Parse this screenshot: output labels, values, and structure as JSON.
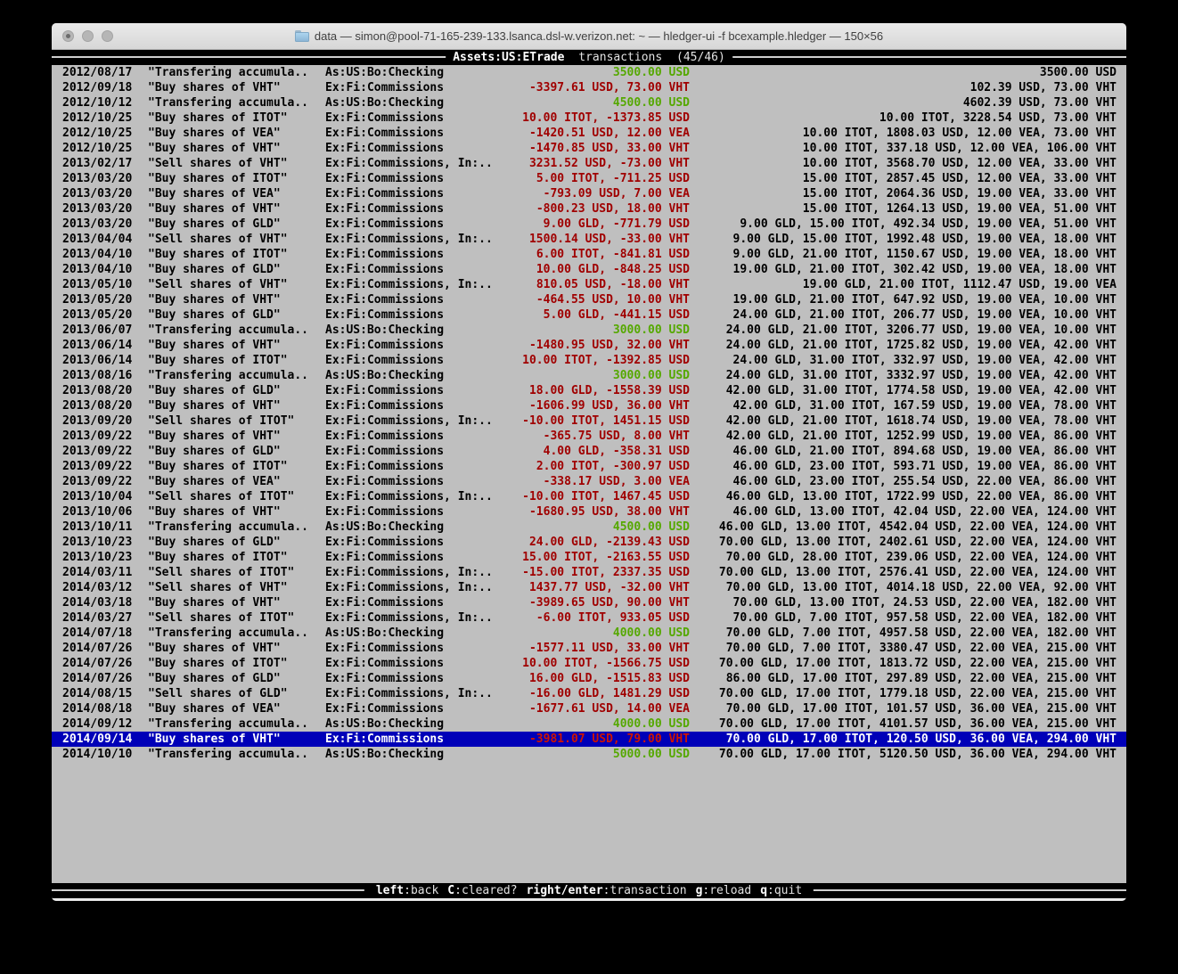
{
  "window": {
    "title": "data — simon@pool-71-165-239-133.lsanca.dsl-w.verizon.net: ~ — hledger-ui -f bcexample.hledger — 150×56"
  },
  "register": {
    "account": "Assets:US:ETrade",
    "mode": "transactions",
    "count": "(45/46)"
  },
  "footer": {
    "separator": ":",
    "hints": [
      {
        "key": "left",
        "label": "back"
      },
      {
        "key": "C",
        "label": "cleared?"
      },
      {
        "key": "right/enter",
        "label": "transaction"
      },
      {
        "key": "g",
        "label": "reload"
      },
      {
        "key": "q",
        "label": "quit"
      }
    ]
  },
  "colors": {
    "terminal_background": "#bfbfbf",
    "bar_background": "#000000",
    "bar_line": "#cfcfcf",
    "amount_negative": "#a00000",
    "amount_positive": "#55a800",
    "selection_background": "#0000b8",
    "selection_text": "#ffffff",
    "selection_negative": "#cd1400"
  },
  "selected_index": 44,
  "transactions": [
    {
      "date": "2012/08/17",
      "description": "\"Transfering accumula..",
      "accounts": "As:US:Bo:Checking",
      "change": "3500.00 USD",
      "change_sign": "pos",
      "balance": "3500.00 USD"
    },
    {
      "date": "2012/09/18",
      "description": "\"Buy shares of VHT\"",
      "accounts": "Ex:Fi:Commissions",
      "change": "-3397.61 USD, 73.00 VHT",
      "change_sign": "neg",
      "balance": "102.39 USD, 73.00 VHT"
    },
    {
      "date": "2012/10/12",
      "description": "\"Transfering accumula..",
      "accounts": "As:US:Bo:Checking",
      "change": "4500.00 USD",
      "change_sign": "pos",
      "balance": "4602.39 USD, 73.00 VHT"
    },
    {
      "date": "2012/10/25",
      "description": "\"Buy shares of ITOT\"",
      "accounts": "Ex:Fi:Commissions",
      "change": "10.00 ITOT, -1373.85 USD",
      "change_sign": "neg",
      "balance": "10.00 ITOT, 3228.54 USD, 73.00 VHT"
    },
    {
      "date": "2012/10/25",
      "description": "\"Buy shares of VEA\"",
      "accounts": "Ex:Fi:Commissions",
      "change": "-1420.51 USD, 12.00 VEA",
      "change_sign": "neg",
      "balance": "10.00 ITOT, 1808.03 USD, 12.00 VEA, 73.00 VHT"
    },
    {
      "date": "2012/10/25",
      "description": "\"Buy shares of VHT\"",
      "accounts": "Ex:Fi:Commissions",
      "change": "-1470.85 USD, 33.00 VHT",
      "change_sign": "neg",
      "balance": "10.00 ITOT, 337.18 USD, 12.00 VEA, 106.00 VHT"
    },
    {
      "date": "2013/02/17",
      "description": "\"Sell shares of VHT\"",
      "accounts": "Ex:Fi:Commissions, In:..",
      "change": "3231.52 USD, -73.00 VHT",
      "change_sign": "neg",
      "balance": "10.00 ITOT, 3568.70 USD, 12.00 VEA, 33.00 VHT"
    },
    {
      "date": "2013/03/20",
      "description": "\"Buy shares of ITOT\"",
      "accounts": "Ex:Fi:Commissions",
      "change": "5.00 ITOT, -711.25 USD",
      "change_sign": "neg",
      "balance": "15.00 ITOT, 2857.45 USD, 12.00 VEA, 33.00 VHT"
    },
    {
      "date": "2013/03/20",
      "description": "\"Buy shares of VEA\"",
      "accounts": "Ex:Fi:Commissions",
      "change": "-793.09 USD, 7.00 VEA",
      "change_sign": "neg",
      "balance": "15.00 ITOT, 2064.36 USD, 19.00 VEA, 33.00 VHT"
    },
    {
      "date": "2013/03/20",
      "description": "\"Buy shares of VHT\"",
      "accounts": "Ex:Fi:Commissions",
      "change": "-800.23 USD, 18.00 VHT",
      "change_sign": "neg",
      "balance": "15.00 ITOT, 1264.13 USD, 19.00 VEA, 51.00 VHT"
    },
    {
      "date": "2013/03/20",
      "description": "\"Buy shares of GLD\"",
      "accounts": "Ex:Fi:Commissions",
      "change": "9.00 GLD, -771.79 USD",
      "change_sign": "neg",
      "balance": "9.00 GLD, 15.00 ITOT, 492.34 USD, 19.00 VEA, 51.00 VHT"
    },
    {
      "date": "2013/04/04",
      "description": "\"Sell shares of VHT\"",
      "accounts": "Ex:Fi:Commissions, In:..",
      "change": "1500.14 USD, -33.00 VHT",
      "change_sign": "neg",
      "balance": "9.00 GLD, 15.00 ITOT, 1992.48 USD, 19.00 VEA, 18.00 VHT"
    },
    {
      "date": "2013/04/10",
      "description": "\"Buy shares of ITOT\"",
      "accounts": "Ex:Fi:Commissions",
      "change": "6.00 ITOT, -841.81 USD",
      "change_sign": "neg",
      "balance": "9.00 GLD, 21.00 ITOT, 1150.67 USD, 19.00 VEA, 18.00 VHT"
    },
    {
      "date": "2013/04/10",
      "description": "\"Buy shares of GLD\"",
      "accounts": "Ex:Fi:Commissions",
      "change": "10.00 GLD, -848.25 USD",
      "change_sign": "neg",
      "balance": "19.00 GLD, 21.00 ITOT, 302.42 USD, 19.00 VEA, 18.00 VHT"
    },
    {
      "date": "2013/05/10",
      "description": "\"Sell shares of VHT\"",
      "accounts": "Ex:Fi:Commissions, In:..",
      "change": "810.05 USD, -18.00 VHT",
      "change_sign": "neg",
      "balance": "19.00 GLD, 21.00 ITOT, 1112.47 USD, 19.00 VEA"
    },
    {
      "date": "2013/05/20",
      "description": "\"Buy shares of VHT\"",
      "accounts": "Ex:Fi:Commissions",
      "change": "-464.55 USD, 10.00 VHT",
      "change_sign": "neg",
      "balance": "19.00 GLD, 21.00 ITOT, 647.92 USD, 19.00 VEA, 10.00 VHT"
    },
    {
      "date": "2013/05/20",
      "description": "\"Buy shares of GLD\"",
      "accounts": "Ex:Fi:Commissions",
      "change": "5.00 GLD, -441.15 USD",
      "change_sign": "neg",
      "balance": "24.00 GLD, 21.00 ITOT, 206.77 USD, 19.00 VEA, 10.00 VHT"
    },
    {
      "date": "2013/06/07",
      "description": "\"Transfering accumula..",
      "accounts": "As:US:Bo:Checking",
      "change": "3000.00 USD",
      "change_sign": "pos",
      "balance": "24.00 GLD, 21.00 ITOT, 3206.77 USD, 19.00 VEA, 10.00 VHT"
    },
    {
      "date": "2013/06/14",
      "description": "\"Buy shares of VHT\"",
      "accounts": "Ex:Fi:Commissions",
      "change": "-1480.95 USD, 32.00 VHT",
      "change_sign": "neg",
      "balance": "24.00 GLD, 21.00 ITOT, 1725.82 USD, 19.00 VEA, 42.00 VHT"
    },
    {
      "date": "2013/06/14",
      "description": "\"Buy shares of ITOT\"",
      "accounts": "Ex:Fi:Commissions",
      "change": "10.00 ITOT, -1392.85 USD",
      "change_sign": "neg",
      "balance": "24.00 GLD, 31.00 ITOT, 332.97 USD, 19.00 VEA, 42.00 VHT"
    },
    {
      "date": "2013/08/16",
      "description": "\"Transfering accumula..",
      "accounts": "As:US:Bo:Checking",
      "change": "3000.00 USD",
      "change_sign": "pos",
      "balance": "24.00 GLD, 31.00 ITOT, 3332.97 USD, 19.00 VEA, 42.00 VHT"
    },
    {
      "date": "2013/08/20",
      "description": "\"Buy shares of GLD\"",
      "accounts": "Ex:Fi:Commissions",
      "change": "18.00 GLD, -1558.39 USD",
      "change_sign": "neg",
      "balance": "42.00 GLD, 31.00 ITOT, 1774.58 USD, 19.00 VEA, 42.00 VHT"
    },
    {
      "date": "2013/08/20",
      "description": "\"Buy shares of VHT\"",
      "accounts": "Ex:Fi:Commissions",
      "change": "-1606.99 USD, 36.00 VHT",
      "change_sign": "neg",
      "balance": "42.00 GLD, 31.00 ITOT, 167.59 USD, 19.00 VEA, 78.00 VHT"
    },
    {
      "date": "2013/09/20",
      "description": "\"Sell shares of ITOT\"",
      "accounts": "Ex:Fi:Commissions, In:..",
      "change": "-10.00 ITOT, 1451.15 USD",
      "change_sign": "neg",
      "balance": "42.00 GLD, 21.00 ITOT, 1618.74 USD, 19.00 VEA, 78.00 VHT"
    },
    {
      "date": "2013/09/22",
      "description": "\"Buy shares of VHT\"",
      "accounts": "Ex:Fi:Commissions",
      "change": "-365.75 USD, 8.00 VHT",
      "change_sign": "neg",
      "balance": "42.00 GLD, 21.00 ITOT, 1252.99 USD, 19.00 VEA, 86.00 VHT"
    },
    {
      "date": "2013/09/22",
      "description": "\"Buy shares of GLD\"",
      "accounts": "Ex:Fi:Commissions",
      "change": "4.00 GLD, -358.31 USD",
      "change_sign": "neg",
      "balance": "46.00 GLD, 21.00 ITOT, 894.68 USD, 19.00 VEA, 86.00 VHT"
    },
    {
      "date": "2013/09/22",
      "description": "\"Buy shares of ITOT\"",
      "accounts": "Ex:Fi:Commissions",
      "change": "2.00 ITOT, -300.97 USD",
      "change_sign": "neg",
      "balance": "46.00 GLD, 23.00 ITOT, 593.71 USD, 19.00 VEA, 86.00 VHT"
    },
    {
      "date": "2013/09/22",
      "description": "\"Buy shares of VEA\"",
      "accounts": "Ex:Fi:Commissions",
      "change": "-338.17 USD, 3.00 VEA",
      "change_sign": "neg",
      "balance": "46.00 GLD, 23.00 ITOT, 255.54 USD, 22.00 VEA, 86.00 VHT"
    },
    {
      "date": "2013/10/04",
      "description": "\"Sell shares of ITOT\"",
      "accounts": "Ex:Fi:Commissions, In:..",
      "change": "-10.00 ITOT, 1467.45 USD",
      "change_sign": "neg",
      "balance": "46.00 GLD, 13.00 ITOT, 1722.99 USD, 22.00 VEA, 86.00 VHT"
    },
    {
      "date": "2013/10/06",
      "description": "\"Buy shares of VHT\"",
      "accounts": "Ex:Fi:Commissions",
      "change": "-1680.95 USD, 38.00 VHT",
      "change_sign": "neg",
      "balance": "46.00 GLD, 13.00 ITOT, 42.04 USD, 22.00 VEA, 124.00 VHT"
    },
    {
      "date": "2013/10/11",
      "description": "\"Transfering accumula..",
      "accounts": "As:US:Bo:Checking",
      "change": "4500.00 USD",
      "change_sign": "pos",
      "balance": "46.00 GLD, 13.00 ITOT, 4542.04 USD, 22.00 VEA, 124.00 VHT"
    },
    {
      "date": "2013/10/23",
      "description": "\"Buy shares of GLD\"",
      "accounts": "Ex:Fi:Commissions",
      "change": "24.00 GLD, -2139.43 USD",
      "change_sign": "neg",
      "balance": "70.00 GLD, 13.00 ITOT, 2402.61 USD, 22.00 VEA, 124.00 VHT"
    },
    {
      "date": "2013/10/23",
      "description": "\"Buy shares of ITOT\"",
      "accounts": "Ex:Fi:Commissions",
      "change": "15.00 ITOT, -2163.55 USD",
      "change_sign": "neg",
      "balance": "70.00 GLD, 28.00 ITOT, 239.06 USD, 22.00 VEA, 124.00 VHT"
    },
    {
      "date": "2014/03/11",
      "description": "\"Sell shares of ITOT\"",
      "accounts": "Ex:Fi:Commissions, In:..",
      "change": "-15.00 ITOT, 2337.35 USD",
      "change_sign": "neg",
      "balance": "70.00 GLD, 13.00 ITOT, 2576.41 USD, 22.00 VEA, 124.00 VHT"
    },
    {
      "date": "2014/03/12",
      "description": "\"Sell shares of VHT\"",
      "accounts": "Ex:Fi:Commissions, In:..",
      "change": "1437.77 USD, -32.00 VHT",
      "change_sign": "neg",
      "balance": "70.00 GLD, 13.00 ITOT, 4014.18 USD, 22.00 VEA, 92.00 VHT"
    },
    {
      "date": "2014/03/18",
      "description": "\"Buy shares of VHT\"",
      "accounts": "Ex:Fi:Commissions",
      "change": "-3989.65 USD, 90.00 VHT",
      "change_sign": "neg",
      "balance": "70.00 GLD, 13.00 ITOT, 24.53 USD, 22.00 VEA, 182.00 VHT"
    },
    {
      "date": "2014/03/27",
      "description": "\"Sell shares of ITOT\"",
      "accounts": "Ex:Fi:Commissions, In:..",
      "change": "-6.00 ITOT, 933.05 USD",
      "change_sign": "neg",
      "balance": "70.00 GLD, 7.00 ITOT, 957.58 USD, 22.00 VEA, 182.00 VHT"
    },
    {
      "date": "2014/07/18",
      "description": "\"Transfering accumula..",
      "accounts": "As:US:Bo:Checking",
      "change": "4000.00 USD",
      "change_sign": "pos",
      "balance": "70.00 GLD, 7.00 ITOT, 4957.58 USD, 22.00 VEA, 182.00 VHT"
    },
    {
      "date": "2014/07/26",
      "description": "\"Buy shares of VHT\"",
      "accounts": "Ex:Fi:Commissions",
      "change": "-1577.11 USD, 33.00 VHT",
      "change_sign": "neg",
      "balance": "70.00 GLD, 7.00 ITOT, 3380.47 USD, 22.00 VEA, 215.00 VHT"
    },
    {
      "date": "2014/07/26",
      "description": "\"Buy shares of ITOT\"",
      "accounts": "Ex:Fi:Commissions",
      "change": "10.00 ITOT, -1566.75 USD",
      "change_sign": "neg",
      "balance": "70.00 GLD, 17.00 ITOT, 1813.72 USD, 22.00 VEA, 215.00 VHT"
    },
    {
      "date": "2014/07/26",
      "description": "\"Buy shares of GLD\"",
      "accounts": "Ex:Fi:Commissions",
      "change": "16.00 GLD, -1515.83 USD",
      "change_sign": "neg",
      "balance": "86.00 GLD, 17.00 ITOT, 297.89 USD, 22.00 VEA, 215.00 VHT"
    },
    {
      "date": "2014/08/15",
      "description": "\"Sell shares of GLD\"",
      "accounts": "Ex:Fi:Commissions, In:..",
      "change": "-16.00 GLD, 1481.29 USD",
      "change_sign": "neg",
      "balance": "70.00 GLD, 17.00 ITOT, 1779.18 USD, 22.00 VEA, 215.00 VHT"
    },
    {
      "date": "2014/08/18",
      "description": "\"Buy shares of VEA\"",
      "accounts": "Ex:Fi:Commissions",
      "change": "-1677.61 USD, 14.00 VEA",
      "change_sign": "neg",
      "balance": "70.00 GLD, 17.00 ITOT, 101.57 USD, 36.00 VEA, 215.00 VHT"
    },
    {
      "date": "2014/09/12",
      "description": "\"Transfering accumula..",
      "accounts": "As:US:Bo:Checking",
      "change": "4000.00 USD",
      "change_sign": "pos",
      "balance": "70.00 GLD, 17.00 ITOT, 4101.57 USD, 36.00 VEA, 215.00 VHT"
    },
    {
      "date": "2014/09/14",
      "description": "\"Buy shares of VHT\"",
      "accounts": "Ex:Fi:Commissions",
      "change": "-3981.07 USD, 79.00 VHT",
      "change_sign": "neg",
      "balance": "70.00 GLD, 17.00 ITOT, 120.50 USD, 36.00 VEA, 294.00 VHT"
    },
    {
      "date": "2014/10/10",
      "description": "\"Transfering accumula..",
      "accounts": "As:US:Bo:Checking",
      "change": "5000.00 USD",
      "change_sign": "pos",
      "balance": "70.00 GLD, 17.00 ITOT, 5120.50 USD, 36.00 VEA, 294.00 VHT"
    }
  ]
}
